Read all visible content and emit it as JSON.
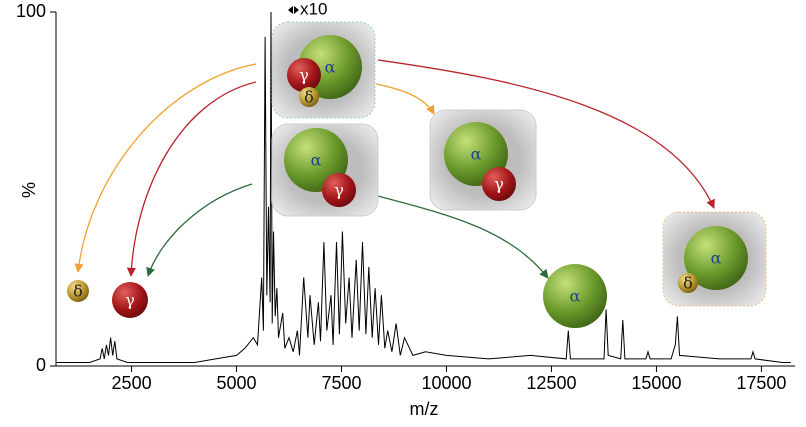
{
  "chart_data": {
    "type": "line",
    "x_label": "m/z",
    "y_label": "%",
    "annotation": "x10",
    "subunit_labels": {
      "alpha": "α",
      "gamma": "γ",
      "delta": "δ"
    },
    "xlim": [
      700,
      18300
    ],
    "ylim": [
      0,
      100
    ],
    "xticks": [
      2500,
      5000,
      7500,
      10000,
      12500,
      15000,
      17500
    ],
    "yticks": [
      0,
      100
    ],
    "series": [
      {
        "color": "#000000",
        "x": [
          700,
          1500,
          1750,
          1800,
          1850,
          1900,
          1950,
          2000,
          2050,
          2100,
          2150,
          2400,
          3000,
          3500,
          4000,
          4500,
          5000,
          5200,
          5400,
          5500,
          5600,
          5640,
          5680,
          5720,
          5760,
          5800,
          5820,
          5850,
          5880,
          5920,
          5960,
          6000,
          6100,
          6150,
          6250,
          6350,
          6450,
          6500,
          6600,
          6700,
          6750,
          6850,
          6950,
          7000,
          7080,
          7150,
          7250,
          7300,
          7380,
          7450,
          7520,
          7600,
          7680,
          7750,
          7850,
          7920,
          8000,
          8080,
          8150,
          8230,
          8300,
          8380,
          8450,
          8530,
          8600,
          8700,
          8800,
          8900,
          9000,
          9200,
          9500,
          10000,
          11000,
          12000,
          12850,
          12900,
          12950,
          13500,
          13750,
          13800,
          13850,
          14150,
          14200,
          14250,
          14750,
          14800,
          14850,
          15350,
          15450,
          15500,
          15550,
          16500,
          17250,
          17300,
          17350,
          18000,
          18200
        ],
        "values": [
          1,
          1,
          2,
          5,
          2,
          6,
          3,
          8,
          3,
          7,
          2,
          1,
          1,
          1,
          1,
          2,
          3,
          5,
          8,
          6,
          25,
          10,
          93,
          20,
          45,
          18,
          100,
          12,
          38,
          14,
          22,
          8,
          15,
          5,
          8,
          4,
          10,
          3,
          25,
          8,
          20,
          6,
          18,
          7,
          35,
          10,
          20,
          6,
          35,
          9,
          38,
          12,
          25,
          8,
          30,
          10,
          35,
          9,
          28,
          8,
          22,
          6,
          20,
          5,
          10,
          4,
          12,
          3,
          8,
          3,
          4,
          3,
          2,
          3,
          2,
          10,
          2,
          2,
          2,
          16,
          3,
          2,
          13,
          2,
          2,
          4,
          2,
          2,
          6,
          14,
          3,
          2,
          2,
          4,
          2,
          1,
          1
        ]
      }
    ]
  }
}
